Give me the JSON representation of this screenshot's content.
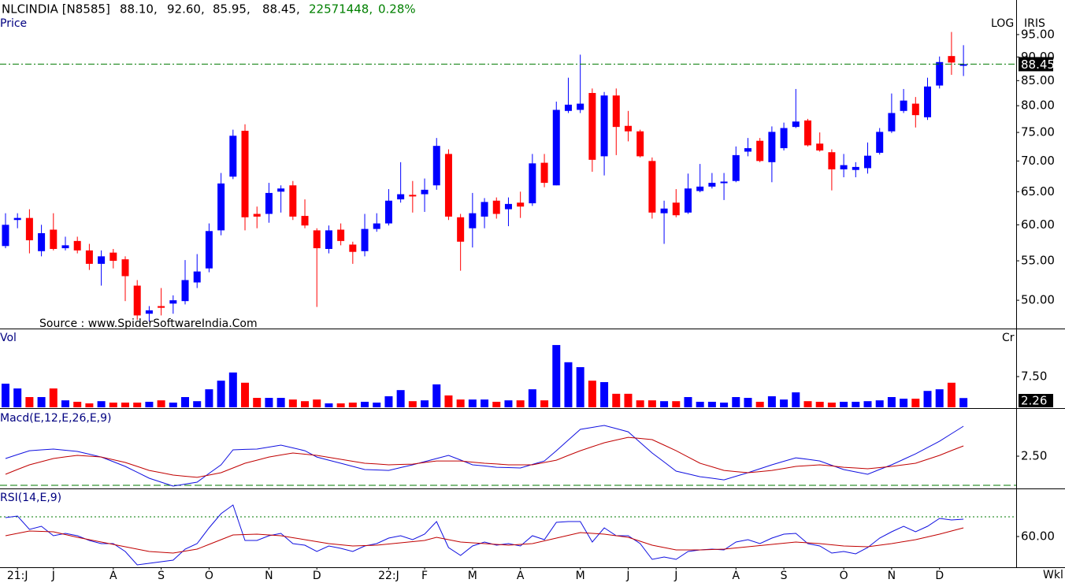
{
  "header": {
    "symbol": "NLCINDIA [N8585]",
    "open": "88.10,",
    "high": "92.60,",
    "low": "85.95,",
    "close": "88.45,",
    "volume": "22571448,",
    "change": "0.28%",
    "scale": "LOG",
    "brand": "IRIS",
    "source": "Source : www.SpiderSoftwareIndia.Com",
    "period": "Wkl"
  },
  "chart_data": [
    {
      "type": "candlestick",
      "title": "Price",
      "log_scale": true,
      "up_color": "#0000ff",
      "down_color": "#ff0000",
      "last_price_color": "#007a00",
      "open": [
        57,
        60.7,
        61,
        56.3,
        59.3,
        56.7,
        57.7,
        56.4,
        54.6,
        56.1,
        55.2,
        51.8,
        48.4,
        49.3,
        49.6,
        49.9,
        52.2,
        54,
        59.2,
        67.4,
        75.3,
        61.6,
        61.6,
        65,
        66,
        61.3,
        59.2,
        56.6,
        59.3,
        57.2,
        56.3,
        59.4,
        60.2,
        63.8,
        64.5,
        64.6,
        66,
        71.2,
        61.1,
        59.5,
        61.2,
        63.6,
        62.3,
        63.3,
        63.2,
        69.7,
        66,
        79,
        79.2,
        82.5,
        70.8,
        82,
        76.2,
        75.2,
        70,
        61.7,
        63.3,
        61.8,
        65.1,
        65.8,
        66.5,
        66.7,
        71.6,
        73.5,
        69.8,
        72.2,
        76,
        77.2,
        73,
        71.5,
        68.6,
        68.5,
        68.8,
        71.4,
        75.2,
        79,
        80.4,
        77.8,
        84,
        90.2,
        88.1
      ],
      "high": [
        61.7,
        61.7,
        62.3,
        60,
        61.7,
        58.3,
        58.3,
        57.3,
        56.4,
        56.6,
        55.6,
        52.5,
        49.3,
        51.5,
        50.6,
        55.1,
        55.9,
        60.2,
        68,
        75.5,
        76.5,
        62.7,
        66.4,
        66,
        66.7,
        63.8,
        59.5,
        59.9,
        60.2,
        57.6,
        61.6,
        61.7,
        65.4,
        69.8,
        66.7,
        67.1,
        74,
        72,
        61.6,
        64.8,
        64,
        64.1,
        64.1,
        65,
        71.2,
        71.2,
        80.8,
        85.6,
        90.5,
        83.4,
        82.7,
        83.4,
        79,
        75.5,
        70.6,
        63.6,
        65.4,
        67.9,
        69.5,
        68,
        68,
        72.5,
        74,
        74,
        76.1,
        76.8,
        83.3,
        77.5,
        75,
        72,
        71.2,
        69.8,
        73.2,
        75.8,
        82.4,
        83.3,
        81.7,
        85.6,
        90.1,
        95.6,
        92.6
      ],
      "low": [
        56.7,
        59.5,
        56,
        55.6,
        56.4,
        56.4,
        56,
        53.8,
        51.8,
        54,
        49.9,
        47.7,
        47.5,
        48.2,
        48.4,
        49.5,
        51.5,
        53.5,
        58.5,
        67,
        59.2,
        59.5,
        60.3,
        61.8,
        60.7,
        59.5,
        49.2,
        56,
        57.1,
        54.6,
        55.6,
        59,
        59.9,
        63.3,
        61.8,
        61.9,
        65.3,
        60.7,
        53.7,
        56.8,
        59.5,
        60.9,
        59.8,
        61,
        62.8,
        65.7,
        66,
        78.6,
        78.6,
        68.2,
        67.6,
        71,
        73.4,
        70.6,
        60.9,
        57.3,
        61.1,
        61.6,
        64.9,
        65.5,
        63.7,
        66.5,
        70.8,
        69.8,
        66.5,
        71.8,
        75.8,
        72.5,
        71.6,
        65.2,
        67.3,
        67.3,
        67.9,
        71.1,
        74.9,
        78.6,
        75.9,
        77.3,
        83.4,
        86.2,
        85.95
      ],
      "close": [
        60,
        61,
        57.8,
        58.8,
        56.6,
        57.1,
        56.4,
        54.6,
        55.6,
        55,
        53,
        48.2,
        48.8,
        49.1,
        50,
        52.5,
        53.6,
        59.1,
        66.3,
        74.4,
        61.1,
        61.2,
        64.8,
        65.5,
        61.2,
        59.9,
        56.7,
        59.2,
        57.7,
        56.2,
        59.4,
        60.2,
        63.6,
        64.6,
        64.3,
        65.3,
        72.6,
        61.2,
        57.6,
        61.7,
        63.4,
        61.6,
        63.1,
        62.7,
        69.6,
        66.4,
        79.2,
        80.2,
        80.4,
        70.2,
        82,
        76,
        75.2,
        70.8,
        61.8,
        62.4,
        61.4,
        65.5,
        65.8,
        66.4,
        66.6,
        71,
        72.2,
        70,
        75.1,
        75.8,
        77,
        72.7,
        71.8,
        68.6,
        69.3,
        69,
        70.9,
        75.1,
        78.6,
        81,
        78.2,
        83.8,
        88.9,
        88.8,
        88.45
      ],
      "ylim": [
        46.7,
        99.8
      ],
      "yticks": [
        {
          "value": 50,
          "label": "50.00"
        },
        {
          "value": 55,
          "label": "55.00"
        },
        {
          "value": 60,
          "label": "60.00"
        },
        {
          "value": 65,
          "label": "65.00"
        },
        {
          "value": 70,
          "label": "70.00"
        },
        {
          "value": 75,
          "label": "75.00"
        },
        {
          "value": 80,
          "label": "80.00"
        },
        {
          "value": 85,
          "label": "85.00"
        },
        {
          "value": 90,
          "label": "90.00"
        },
        {
          "value": 95,
          "label": "95.00"
        }
      ],
      "xlim": [
        -0.46,
        84.4
      ],
      "xticks": [
        {
          "value": 1,
          "label": "21:J"
        },
        {
          "value": 4,
          "label": "J"
        },
        {
          "value": 9,
          "label": "A"
        },
        {
          "value": 13,
          "label": "S"
        },
        {
          "value": 17,
          "label": "O"
        },
        {
          "value": 22,
          "label": "N"
        },
        {
          "value": 26,
          "label": "D"
        },
        {
          "value": 32,
          "label": "22:J"
        },
        {
          "value": 35,
          "label": "F"
        },
        {
          "value": 39,
          "label": "M"
        },
        {
          "value": 43,
          "label": "A"
        },
        {
          "value": 48,
          "label": "M"
        },
        {
          "value": 52,
          "label": "J"
        },
        {
          "value": 56,
          "label": "J"
        },
        {
          "value": 61,
          "label": "A"
        },
        {
          "value": 65,
          "label": "S"
        },
        {
          "value": 70,
          "label": "O"
        },
        {
          "value": 74,
          "label": "N"
        },
        {
          "value": 78,
          "label": "D"
        }
      ]
    },
    {
      "type": "bar",
      "title": "Vol",
      "unit": "Cr",
      "values": [
        5.77,
        4.6,
        2.5,
        2.5,
        4.6,
        1.7,
        1.35,
        0.96,
        1.5,
        1.15,
        1.15,
        1.15,
        1.35,
        1.7,
        1.15,
        2.5,
        1.5,
        4.4,
        6.5,
        8.5,
        6,
        2.3,
        2.3,
        2.3,
        1.9,
        1.5,
        1.9,
        0.96,
        0.96,
        1.15,
        1.35,
        1.15,
        2.7,
        4.2,
        1.5,
        1.7,
        5.6,
        2.9,
        1.9,
        1.9,
        1.9,
        1.35,
        1.7,
        1.7,
        4.4,
        1.7,
        15.2,
        11,
        9.8,
        6.5,
        6.15,
        3.3,
        3.3,
        1.7,
        1.7,
        1.5,
        1.5,
        2.5,
        1.35,
        1.35,
        1.15,
        2.5,
        2.3,
        1.35,
        2.7,
        1.9,
        3.65,
        1.5,
        1.35,
        1.15,
        1.35,
        1.35,
        1.5,
        1.7,
        2.5,
        2.1,
        2.1,
        4,
        4.4,
        6,
        2.26
      ],
      "ylim": [
        0,
        18.65
      ],
      "yticks": [
        {
          "value": 7.5,
          "label": "7.50"
        }
      ]
    },
    {
      "type": "line",
      "title": "Macd(E,12,E,26,E,9)",
      "hline": 0,
      "hline_color": "#007a00",
      "series": [
        {
          "color": "#1010e0",
          "values": [
            2.3,
            2.64,
            2.97,
            3.04,
            3.11,
            3.01,
            2.91,
            2.67,
            2.43,
            2.03,
            1.62,
            1.12,
            0.61,
            0.27,
            -0.07,
            0.1,
            0.27,
            1.02,
            1.76,
            3.04,
            3.08,
            3.11,
            3.28,
            3.45,
            3.21,
            2.97,
            2.43,
            2.16,
            1.89,
            1.62,
            1.35,
            1.32,
            1.28,
            1.52,
            1.76,
            2.03,
            2.3,
            2.57,
            2.17,
            1.76,
            1.66,
            1.55,
            1.52,
            1.49,
            1.79,
            2.09,
            2.97,
            3.89,
            4.8,
            4.97,
            5.14,
            4.87,
            4.59,
            3.68,
            2.77,
            2.0,
            1.22,
            0.98,
            0.74,
            0.61,
            0.47,
            0.78,
            1.08,
            1.42,
            1.76,
            2.06,
            2.36,
            2.23,
            2.09,
            1.72,
            1.35,
            1.15,
            0.95,
            1.36,
            1.76,
            2.23,
            2.7,
            3.24,
            3.78,
            4.43,
            5.07
          ]
        },
        {
          "color": "#c00000",
          "values": [
            0.95,
            1.36,
            1.76,
            2.03,
            2.3,
            2.44,
            2.57,
            2.5,
            2.43,
            2.2,
            1.96,
            1.62,
            1.28,
            1.08,
            0.88,
            0.78,
            0.68,
            0.88,
            1.08,
            1.49,
            1.89,
            2.16,
            2.43,
            2.6,
            2.77,
            2.67,
            2.57,
            2.4,
            2.23,
            2.06,
            1.89,
            1.83,
            1.76,
            1.79,
            1.82,
            1.96,
            2.09,
            2.09,
            2.09,
            1.99,
            1.89,
            1.83,
            1.76,
            1.76,
            1.76,
            1.96,
            2.16,
            2.57,
            2.97,
            3.31,
            3.65,
            3.89,
            4.12,
            4.02,
            3.92,
            3.45,
            2.97,
            2.43,
            1.89,
            1.59,
            1.28,
            1.18,
            1.08,
            1.18,
            1.28,
            1.45,
            1.62,
            1.69,
            1.76,
            1.66,
            1.55,
            1.49,
            1.42,
            1.52,
            1.62,
            1.76,
            1.89,
            2.23,
            2.57,
            2.98,
            3.38
          ]
        }
      ],
      "ylim": [
        -0.27,
        6.49
      ],
      "yticks": [
        {
          "value": 2.5,
          "label": "2.50"
        }
      ]
    },
    {
      "type": "line",
      "title": "RSI(14,E,9)",
      "hline": 70,
      "hline_color": "#007a00",
      "series": [
        {
          "color": "#1010e0",
          "values": [
            69.6,
            70.4,
            63.6,
            65.2,
            60.4,
            61.6,
            60.4,
            58.0,
            56.4,
            56.4,
            52.4,
            45.6,
            46.4,
            47.2,
            48.0,
            53.6,
            56.4,
            64.4,
            71.6,
            76.0,
            58.0,
            58.0,
            60.4,
            61.6,
            56.4,
            55.6,
            52.4,
            55.2,
            54.0,
            52.4,
            55.2,
            56.4,
            59.2,
            60.4,
            58.4,
            61.2,
            67.6,
            54.4,
            50.4,
            55.2,
            57.2,
            55.6,
            56.4,
            55.2,
            60.4,
            58.4,
            67.2,
            67.6,
            67.6,
            57.2,
            64.4,
            60.4,
            60.4,
            56.4,
            48.4,
            49.6,
            48.4,
            52.4,
            53.2,
            53.6,
            53.2,
            57.2,
            58.4,
            56.4,
            59.2,
            61.2,
            61.6,
            56.4,
            55.2,
            51.6,
            52.4,
            51.2,
            54.4,
            59.2,
            62.4,
            65.2,
            62.4,
            65.2,
            69.2,
            68.4,
            68.8
          ]
        },
        {
          "color": "#c00000",
          "values": [
            60.4,
            61.6,
            62.8,
            62.6,
            62.4,
            61.0,
            59.6,
            58.4,
            57.2,
            56.0,
            54.8,
            53.6,
            52.4,
            52.0,
            51.6,
            52.6,
            53.6,
            56.0,
            58.4,
            60.8,
            61.0,
            61.2,
            60.8,
            60.4,
            59.4,
            58.4,
            57.4,
            56.4,
            55.8,
            55.2,
            55.4,
            55.6,
            56.2,
            56.8,
            57.4,
            58.0,
            59.6,
            58.4,
            57.2,
            56.8,
            56.4,
            56.0,
            55.6,
            56.0,
            56.4,
            57.8,
            59.2,
            60.6,
            62.0,
            61.6,
            61.2,
            60.4,
            59.6,
            57.6,
            55.6,
            54.4,
            53.2,
            53.2,
            53.2,
            53.4,
            53.6,
            54.2,
            54.8,
            55.4,
            56.0,
            56.6,
            57.2,
            56.8,
            56.4,
            55.8,
            55.2,
            55.0,
            54.8,
            55.6,
            56.4,
            57.4,
            58.4,
            59.8,
            61.2,
            62.8,
            64.4
          ]
        }
      ],
      "ylim": [
        44.4,
        83.6
      ],
      "yticks": [
        {
          "value": 60,
          "label": "60.00"
        }
      ]
    }
  ]
}
